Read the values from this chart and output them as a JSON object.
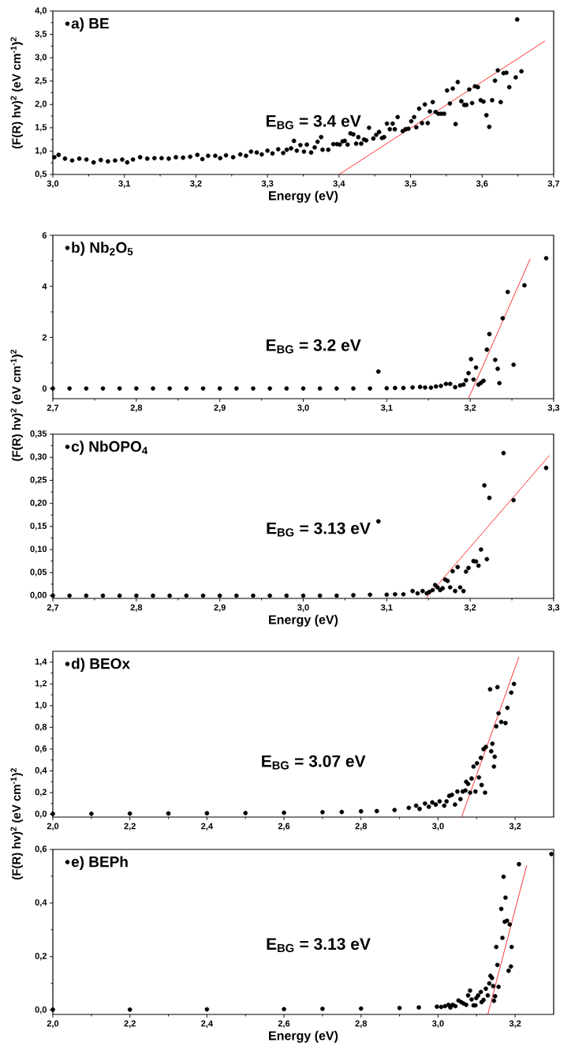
{
  "chart_data": [
    {
      "type": "scatter",
      "xlabel": "Energy (eV)",
      "ylabel": "(F(R) hv)$^{2}$ (eV cm$^{-1}$)$^{2}$",
      "legend": "top left",
      "marker": "circle",
      "xlim": [
        3.0,
        3.7
      ],
      "ylim": [
        0.5,
        4.0
      ],
      "xticks": [
        {
          "value": 3.0,
          "label": "3,0"
        },
        {
          "value": 3.1,
          "label": "3,1"
        },
        {
          "value": 3.2,
          "label": "3,2"
        },
        {
          "value": 3.3,
          "label": "3,3"
        },
        {
          "value": 3.4,
          "label": "3,4"
        },
        {
          "value": 3.5,
          "label": "3,5"
        },
        {
          "value": 3.6,
          "label": "3,6"
        },
        {
          "value": 3.7,
          "label": "3,7"
        }
      ],
      "yticks": [
        {
          "value": 0.5,
          "label": "0,5"
        },
        {
          "value": 1.0,
          "label": "1,0"
        },
        {
          "value": 1.5,
          "label": "1,5"
        },
        {
          "value": 2.0,
          "label": "2,0"
        },
        {
          "value": 2.5,
          "label": "2,5"
        },
        {
          "value": 3.0,
          "label": "3,0"
        },
        {
          "value": 3.5,
          "label": "3,5"
        },
        {
          "value": 4.0,
          "label": "4,0"
        }
      ],
      "annotations": [
        "E$_{BG}$ = 3.4 eV"
      ],
      "series": [
        {
          "name": "a) BE",
          "color": "#000000",
          "x": [
            3.002,
            3.008,
            3.017,
            3.027,
            3.037,
            3.047,
            3.057,
            3.067,
            3.077,
            3.087,
            3.097,
            3.104,
            3.112,
            3.122,
            3.132,
            3.142,
            3.152,
            3.162,
            3.172,
            3.182,
            3.192,
            3.202,
            3.209,
            3.217,
            3.227,
            3.234,
            3.242,
            3.252,
            3.262,
            3.27,
            3.277,
            3.285,
            3.292,
            3.3,
            3.307,
            3.315,
            3.322,
            3.327,
            3.333,
            3.337,
            3.341,
            3.346,
            3.351,
            3.355,
            3.361,
            3.366,
            3.37,
            3.375,
            3.377,
            3.385,
            3.392,
            3.397,
            3.401,
            3.405,
            3.408,
            3.412,
            3.416,
            3.42,
            3.424,
            3.427,
            3.431,
            3.435,
            3.438,
            3.442,
            3.448,
            3.452,
            3.456,
            3.46,
            3.463,
            3.467,
            3.471,
            3.475,
            3.478,
            3.482,
            3.489,
            3.493,
            3.497,
            3.501,
            3.505,
            3.508,
            3.512,
            3.516,
            3.52,
            3.524,
            3.527,
            3.531,
            3.535,
            3.539,
            3.543,
            3.547,
            3.551,
            3.555,
            3.559,
            3.563,
            3.566,
            3.571,
            3.575,
            3.578,
            3.582,
            3.586,
            3.59,
            3.594,
            3.598,
            3.602,
            3.606,
            3.61,
            3.614,
            3.618,
            3.622,
            3.626,
            3.63,
            3.634,
            3.638,
            3.647,
            3.649,
            3.655
          ],
          "values": [
            0.87,
            0.92,
            0.84,
            0.8,
            0.84,
            0.82,
            0.76,
            0.81,
            0.78,
            0.8,
            0.82,
            0.76,
            0.82,
            0.87,
            0.84,
            0.85,
            0.85,
            0.84,
            0.87,
            0.86,
            0.88,
            0.92,
            0.83,
            0.9,
            0.9,
            0.85,
            0.91,
            0.87,
            0.93,
            0.9,
            0.99,
            0.97,
            0.93,
            1.01,
            0.95,
            1.04,
            0.96,
            1.03,
            1.06,
            1.22,
            1.01,
            1.13,
            0.99,
            1.14,
            0.97,
            1.08,
            1.2,
            1.3,
            1.03,
            1.03,
            1.15,
            1.15,
            1.14,
            1.21,
            1.22,
            1.14,
            1.38,
            1.36,
            1.16,
            1.3,
            1.16,
            1.25,
            1.23,
            1.5,
            1.27,
            1.35,
            1.41,
            1.28,
            1.3,
            1.59,
            1.47,
            1.59,
            1.47,
            1.73,
            1.43,
            1.47,
            1.48,
            1.64,
            1.73,
            1.51,
            1.91,
            1.6,
            2.0,
            1.6,
            1.85,
            2.05,
            1.84,
            1.8,
            1.8,
            1.8,
            2.3,
            2.02,
            2.34,
            1.58,
            2.48,
            2.07,
            1.99,
            1.99,
            2.32,
            2.03,
            2.39,
            2.37,
            2.09,
            2.06,
            1.77,
            1.52,
            2.09,
            2.51,
            2.73,
            2.05,
            2.67,
            2.68,
            2.37,
            2.58,
            3.82,
            2.71
          ]
        },
        {
          "type": "line",
          "color": "#ff0000",
          "marker": "none",
          "x": [
            3.4,
            3.688
          ],
          "values": [
            0.5,
            3.36
          ]
        }
      ]
    },
    {
      "type": "scatter",
      "ylabel": "(F(R) hv)$^{2}$ (eV cm$^{-1}$)$^{2}$",
      "legend": "top left",
      "marker": "circle",
      "xlim": [
        2.7,
        3.3
      ],
      "ylim": [
        -0.4,
        6
      ],
      "xticks": [
        {
          "value": 2.7,
          "label": "2,7"
        },
        {
          "value": 2.8,
          "label": "2,8"
        },
        {
          "value": 2.9,
          "label": "2,9"
        },
        {
          "value": 3.0,
          "label": "3,0"
        },
        {
          "value": 3.1,
          "label": "3,1"
        },
        {
          "value": 3.2,
          "label": "3,2"
        },
        {
          "value": 3.3,
          "label": "3,3"
        }
      ],
      "yticks": [
        0,
        2,
        4,
        6
      ],
      "annotations": [
        "E$_{BG}$ = 3.2 eV"
      ],
      "series": [
        {
          "name": "b) Nb$_{2}$O$_{5}$",
          "color": "#000000",
          "x": [
            2.7,
            2.72,
            2.74,
            2.76,
            2.78,
            2.8,
            2.82,
            2.84,
            2.86,
            2.88,
            2.9,
            2.92,
            2.94,
            2.96,
            2.98,
            3.0,
            3.02,
            3.04,
            3.06,
            3.08,
            3.09,
            3.1,
            3.11,
            3.12,
            3.131,
            3.14,
            3.146,
            3.153,
            3.159,
            3.165,
            3.171,
            3.176,
            3.182,
            3.188,
            3.192,
            3.195,
            3.198,
            3.201,
            3.204,
            3.207,
            3.21,
            3.213,
            3.216,
            3.22,
            3.223,
            3.23,
            3.233,
            3.235,
            3.239,
            3.245,
            3.252,
            3.265,
            3.291
          ],
          "values": [
            0,
            0,
            0,
            0,
            0,
            0,
            0,
            0,
            0,
            0,
            0,
            0,
            0,
            0,
            0,
            0,
            0,
            0,
            0,
            0,
            0.66,
            0.01,
            0.02,
            0.02,
            0.04,
            0.06,
            0.04,
            0.03,
            0.08,
            0.1,
            0.18,
            0.18,
            0.05,
            0.12,
            0.15,
            0.32,
            0.6,
            1.15,
            0.35,
            0.82,
            0.15,
            0.22,
            0.3,
            1.52,
            2.13,
            1.12,
            0.77,
            0.21,
            2.75,
            3.78,
            0.93,
            4.04,
            5.1
          ]
        },
        {
          "type": "line",
          "color": "#ff0000",
          "marker": "none",
          "x": [
            3.198,
            3.272
          ],
          "values": [
            -0.39,
            5.08
          ]
        }
      ]
    },
    {
      "type": "scatter",
      "xlabel": "Energy (eV)",
      "legend": "top left",
      "marker": "circle",
      "xlim": [
        2.7,
        3.3
      ],
      "ylim": [
        -0.006,
        0.35
      ],
      "xticks": [
        {
          "value": 2.7,
          "label": "2,7"
        },
        {
          "value": 2.8,
          "label": "2,8"
        },
        {
          "value": 2.9,
          "label": "2,9"
        },
        {
          "value": 3.0,
          "label": "3,0"
        },
        {
          "value": 3.1,
          "label": "3,1"
        },
        {
          "value": 3.2,
          "label": "3,2"
        },
        {
          "value": 3.3,
          "label": "3,3"
        }
      ],
      "yticks": [
        {
          "value": 0,
          "label": "0,00"
        },
        {
          "value": 0.05,
          "label": "0,05"
        },
        {
          "value": 0.1,
          "label": "0,10"
        },
        {
          "value": 0.15,
          "label": "0,15"
        },
        {
          "value": 0.2,
          "label": "0,20"
        },
        {
          "value": 0.25,
          "label": "0,25"
        },
        {
          "value": 0.3,
          "label": "0,30"
        },
        {
          "value": 0.35,
          "label": "0,35"
        }
      ],
      "annotations": [
        "E$_{BG}$ = 3.13 eV"
      ],
      "series": [
        {
          "name": "c) NbOPO$_{4}$",
          "color": "#000000",
          "x": [
            2.7,
            2.72,
            2.74,
            2.76,
            2.78,
            2.8,
            2.82,
            2.84,
            2.86,
            2.88,
            2.9,
            2.92,
            2.94,
            2.96,
            2.98,
            3.0,
            3.02,
            3.04,
            3.06,
            3.08,
            3.09,
            3.1,
            3.11,
            3.12,
            3.131,
            3.137,
            3.143,
            3.148,
            3.151,
            3.155,
            3.158,
            3.161,
            3.164,
            3.167,
            3.17,
            3.173,
            3.176,
            3.179,
            3.182,
            3.185,
            3.188,
            3.192,
            3.195,
            3.198,
            3.204,
            3.207,
            3.21,
            3.213,
            3.217,
            3.22,
            3.223,
            3.24,
            3.252,
            3.291
          ],
          "values": [
            0,
            0,
            0,
            0,
            0,
            0,
            0,
            0,
            0,
            0,
            0,
            0,
            0,
            0,
            0,
            0,
            0,
            0,
            0.001,
            0.002,
            0.161,
            0.002,
            0.003,
            0.003,
            0.01,
            0.005,
            0.01,
            0.005,
            0.008,
            0.012,
            0.023,
            0.018,
            0.012,
            0.016,
            0.035,
            0.032,
            0.018,
            0.053,
            0.01,
            0.062,
            0.018,
            0.01,
            0.052,
            0.06,
            0.075,
            0.074,
            0.065,
            0.1,
            0.239,
            0.079,
            0.212,
            0.309,
            0.207,
            0.277
          ]
        },
        {
          "type": "line",
          "color": "#ff0000",
          "marker": "none",
          "x": [
            3.147,
            3.295
          ],
          "values": [
            -0.006,
            0.304
          ]
        }
      ]
    },
    {
      "type": "scatter",
      "ylabel": "(F(R) hv)$^{2}$ (eV cm$^{-1}$)$^{2}$",
      "legend": "top left",
      "marker": "circle",
      "xlim": [
        2.0,
        3.3
      ],
      "ylim": [
        -0.025,
        1.5
      ],
      "xticks": [
        {
          "value": 2.0,
          "label": "2,0"
        },
        {
          "value": 2.2,
          "label": "2,2"
        },
        {
          "value": 2.4,
          "label": "2,4"
        },
        {
          "value": 2.6,
          "label": "2,6"
        },
        {
          "value": 2.8,
          "label": "2,8"
        },
        {
          "value": 3.0,
          "label": "3,0"
        },
        {
          "value": 3.2,
          "label": "3,2"
        }
      ],
      "yticks": [
        {
          "value": 0,
          "label": "0,0"
        },
        {
          "value": 0.2,
          "label": "0,2"
        },
        {
          "value": 0.4,
          "label": "0,4"
        },
        {
          "value": 0.6,
          "label": "0,6"
        },
        {
          "value": 0.8,
          "label": "0,8"
        },
        {
          "value": 1.0,
          "label": "1,0"
        },
        {
          "value": 1.2,
          "label": "1,2"
        },
        {
          "value": 1.4,
          "label": "1,4"
        }
      ],
      "annotations": [
        "E$_{BG}$ = 3.07 eV"
      ],
      "series": [
        {
          "name": "d) BEOx",
          "color": "#000000",
          "x": [
            2.0,
            2.1,
            2.2,
            2.3,
            2.4,
            2.5,
            2.6,
            2.7,
            2.75,
            2.8,
            2.841,
            2.887,
            2.924,
            2.943,
            2.952,
            2.966,
            2.976,
            2.985,
            2.994,
            3.004,
            3.016,
            3.022,
            3.029,
            3.036,
            3.044,
            3.05,
            3.058,
            3.064,
            3.071,
            3.073,
            3.078,
            3.083,
            3.087,
            3.092,
            3.097,
            3.101,
            3.106,
            3.111,
            3.113,
            3.118,
            3.122,
            3.124,
            3.135,
            3.138,
            3.141,
            3.145,
            3.147,
            3.151,
            3.154,
            3.157,
            3.164,
            3.175,
            3.18,
            3.19,
            3.197
          ],
          "values": [
            0.005,
            0.006,
            0.007,
            0.008,
            0.01,
            0.012,
            0.015,
            0.02,
            0.022,
            0.028,
            0.03,
            0.04,
            0.06,
            0.08,
            0.05,
            0.1,
            0.07,
            0.11,
            0.09,
            0.12,
            0.08,
            0.12,
            0.17,
            0.18,
            0.09,
            0.21,
            0.14,
            0.21,
            0.22,
            0.3,
            0.28,
            0.2,
            0.33,
            0.44,
            0.21,
            0.47,
            0.34,
            0.52,
            0.27,
            0.6,
            0.2,
            0.62,
            1.15,
            0.58,
            0.65,
            0.44,
            0.53,
            0.81,
            1.17,
            0.93,
            0.85,
            0.84,
            0.98,
            1.12,
            1.2
          ]
        },
        {
          "type": "line",
          "color": "#ff0000",
          "marker": "none",
          "x": [
            3.061,
            3.21
          ],
          "values": [
            -0.025,
            1.45
          ]
        }
      ]
    },
    {
      "type": "scatter",
      "xlabel": "Energy (eV)",
      "legend": "top left",
      "marker": "circle",
      "xlim": [
        2.0,
        3.3
      ],
      "ylim": [
        -0.016,
        0.6
      ],
      "xticks": [
        {
          "value": 2.0,
          "label": "2,0"
        },
        {
          "value": 2.2,
          "label": "2,2"
        },
        {
          "value": 2.4,
          "label": "2,4"
        },
        {
          "value": 2.6,
          "label": "2,6"
        },
        {
          "value": 2.8,
          "label": "2,8"
        },
        {
          "value": 3.0,
          "label": "3,0"
        },
        {
          "value": 3.2,
          "label": "3,2"
        }
      ],
      "yticks": [
        {
          "value": 0,
          "label": "0,0"
        },
        {
          "value": 0.2,
          "label": "0,2"
        },
        {
          "value": 0.4,
          "label": "0,4"
        },
        {
          "value": 0.6,
          "label": "0,6"
        }
      ],
      "annotations": [
        "E$_{BG}$ = 3.13 eV"
      ],
      "series": [
        {
          "name": "e) BEPh",
          "color": "#000000",
          "x": [
            2.0,
            2.2,
            2.4,
            2.6,
            2.7,
            2.8,
            2.9,
            2.95,
            2.997,
            3.008,
            3.018,
            3.027,
            3.032,
            3.038,
            3.045,
            3.053,
            3.06,
            3.066,
            3.073,
            3.078,
            3.083,
            3.087,
            3.092,
            3.097,
            3.099,
            3.104,
            3.111,
            3.113,
            3.118,
            3.124,
            3.129,
            3.133,
            3.136,
            3.14,
            3.143,
            3.145,
            3.148,
            3.151,
            3.154,
            3.157,
            3.164,
            3.167,
            3.17,
            3.173,
            3.175,
            3.179,
            3.183,
            3.186,
            3.189,
            3.191,
            3.21,
            3.294
          ],
          "values": [
            0.002,
            0.002,
            0.003,
            0.004,
            0.005,
            0.006,
            0.008,
            0.01,
            0.013,
            0.012,
            0.015,
            0.02,
            0.01,
            0.02,
            0.015,
            0.036,
            0.03,
            0.025,
            0.02,
            0.055,
            0.073,
            0.04,
            0.018,
            0.018,
            0.045,
            0.055,
            0.068,
            0.03,
            0.038,
            0.08,
            0.055,
            0.1,
            0.128,
            0.12,
            0.09,
            0.035,
            0.052,
            0.236,
            0.169,
            0.087,
            0.378,
            0.27,
            0.498,
            0.33,
            0.42,
            0.334,
            0.147,
            0.32,
            0.163,
            0.236,
            0.545,
            0.583
          ]
        },
        {
          "type": "line",
          "color": "#ff0000",
          "marker": "none",
          "x": [
            3.129,
            3.23
          ],
          "values": [
            -0.016,
            0.54
          ]
        }
      ]
    }
  ]
}
